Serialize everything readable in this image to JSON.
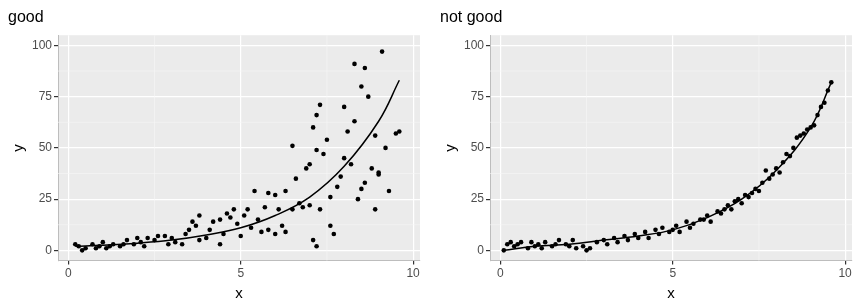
{
  "chart_data": [
    {
      "type": "scatter",
      "title": "good",
      "x_label": "x",
      "y_label": "y",
      "xlim": [
        -0.3,
        10.2
      ],
      "ylim": [
        -5,
        105
      ],
      "xticks": [
        0,
        5,
        10
      ],
      "yticks": [
        0,
        25,
        50,
        75,
        100
      ],
      "grid": true,
      "series": [
        {
          "type": "scatter",
          "color": "#000000",
          "x": [
            7.3,
            8.3,
            8.6,
            9.1,
            8.5,
            8.7,
            7.2,
            7.1,
            6.5,
            7.0,
            6.9,
            6.3,
            6.0,
            5.8,
            5.4,
            5.7,
            4.8,
            5.2,
            4.6,
            3.8,
            3.6,
            4.4,
            7.2,
            7.4,
            8.0,
            8.2,
            8.8,
            9.0,
            9.2,
            9.5,
            9.6,
            9.0,
            8.9,
            8.5,
            8.4,
            7.9,
            7.8,
            7.6,
            7.3,
            7.1,
            7.2,
            7.6,
            7.7,
            7.0,
            6.8,
            6.5,
            6.3,
            6.2,
            6.0,
            5.8,
            5.5,
            5.3,
            5.0,
            4.9,
            4.5,
            4.4,
            4.1,
            4.0,
            3.8,
            3.5,
            3.3,
            3.0,
            2.8,
            2.5,
            2.3,
            2.1,
            1.9,
            1.7,
            1.5,
            1.3,
            1.1,
            0.9,
            0.7,
            0.5,
            0.3,
            0.2,
            0.4,
            0.8,
            1.0,
            1.2,
            1.6,
            2.0,
            2.2,
            2.6,
            2.9,
            3.1,
            3.4,
            3.7,
            4.2,
            4.7,
            5.1,
            5.6,
            6.1,
            6.6,
            6.7,
            8.1,
            8.3,
            8.0,
            8.6,
            9.3,
            8.9,
            7.5
          ],
          "values": [
            71,
            91,
            89,
            97,
            80,
            75,
            66,
            60,
            51,
            42,
            40,
            29,
            27,
            28,
            29,
            21,
            20,
            20,
            18,
            17,
            14,
            15,
            49,
            47,
            45,
            42,
            40,
            38,
            50,
            57,
            58,
            37,
            20,
            30,
            25,
            36,
            31,
            26,
            20,
            5,
            2,
            12,
            8,
            22,
            21,
            20,
            9,
            12,
            8,
            10,
            15,
            11,
            7,
            13,
            8,
            3,
            10,
            6,
            5,
            10,
            3,
            6,
            7,
            5,
            6,
            4,
            3,
            5,
            2,
            3,
            1,
            2,
            3,
            1,
            2,
            3,
            0,
            1,
            4,
            2,
            3,
            6,
            2,
            7,
            3,
            4,
            8,
            12,
            14,
            16,
            17,
            9,
            20,
            35,
            23,
            58,
            63,
            70,
            33,
            29,
            56,
            54
          ]
        },
        {
          "type": "line",
          "color": "#000000",
          "x": [
            0.2,
            1,
            2,
            3,
            4,
            5,
            6,
            7,
            8,
            9,
            9.6
          ],
          "values": [
            2,
            2.5,
            3.5,
            5,
            7.5,
            11,
            17,
            26,
            41,
            63,
            83
          ]
        }
      ]
    },
    {
      "type": "scatter",
      "title": "not good",
      "x_label": "x",
      "y_label": "y",
      "xlim": [
        -0.3,
        10.2
      ],
      "ylim": [
        -5,
        105
      ],
      "xticks": [
        0,
        5,
        10
      ],
      "yticks": [
        0,
        25,
        50,
        75,
        100
      ],
      "grid": true,
      "series": [
        {
          "type": "scatter",
          "color": "#000000",
          "x": [
            0.1,
            0.2,
            0.3,
            0.4,
            0.5,
            0.6,
            0.8,
            0.9,
            1.0,
            1.1,
            1.2,
            1.3,
            1.5,
            1.6,
            1.7,
            1.9,
            2.0,
            2.1,
            2.2,
            2.4,
            2.5,
            2.6,
            2.8,
            3.0,
            3.1,
            3.3,
            3.4,
            3.6,
            3.7,
            3.9,
            4.0,
            4.2,
            4.3,
            4.5,
            4.6,
            4.7,
            4.9,
            5.0,
            5.1,
            5.2,
            5.4,
            5.5,
            5.6,
            5.8,
            5.9,
            6.0,
            6.1,
            6.3,
            6.4,
            6.5,
            6.6,
            6.7,
            6.8,
            6.9,
            7.0,
            7.1,
            7.2,
            7.3,
            7.4,
            7.5,
            7.6,
            7.7,
            7.8,
            7.9,
            8.0,
            8.1,
            8.2,
            8.3,
            8.4,
            8.5,
            8.6,
            8.7,
            8.8,
            8.9,
            9.0,
            9.1,
            9.2,
            9.3,
            9.4,
            9.5,
            9.6
          ],
          "values": [
            0,
            3,
            4,
            2,
            3,
            4,
            1,
            4,
            2,
            3,
            1,
            4,
            2,
            3,
            5,
            3,
            2,
            5,
            1,
            2,
            0,
            1,
            4,
            5,
            3,
            6,
            4,
            7,
            5,
            8,
            6,
            9,
            6,
            10,
            8,
            11,
            9,
            10,
            12,
            9,
            14,
            11,
            13,
            15,
            15,
            17,
            14,
            19,
            18,
            20,
            22,
            20,
            24,
            25,
            23,
            27,
            26,
            28,
            30,
            29,
            33,
            39,
            35,
            37,
            40,
            38,
            43,
            47,
            46,
            50,
            55,
            56,
            57,
            59,
            60,
            61,
            66,
            70,
            72,
            78,
            82
          ]
        },
        {
          "type": "line",
          "color": "#000000",
          "x": [
            0.1,
            1,
            2,
            3,
            4,
            5,
            6,
            7,
            8,
            9,
            9.6
          ],
          "values": [
            0,
            2,
            3,
            5,
            7,
            10,
            16,
            25,
            39,
            60,
            82
          ]
        }
      ]
    }
  ]
}
